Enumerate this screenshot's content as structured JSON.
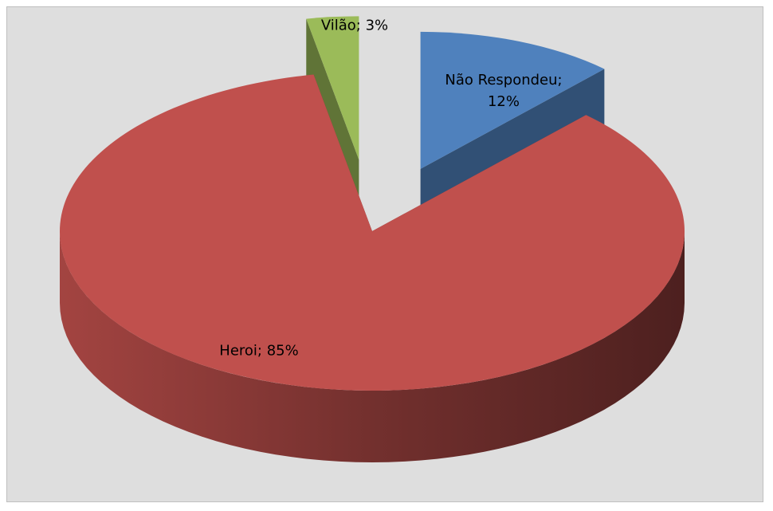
{
  "chart_data": {
    "type": "pie",
    "three_d": true,
    "values": [
      12,
      85,
      3
    ],
    "value_labels": [
      "Não Respondeu; 12%",
      "Heroi; 85%",
      "Vilão; 3%"
    ],
    "colors": [
      "#4f81bd",
      "#c0504d",
      "#9bbb59"
    ]
  }
}
